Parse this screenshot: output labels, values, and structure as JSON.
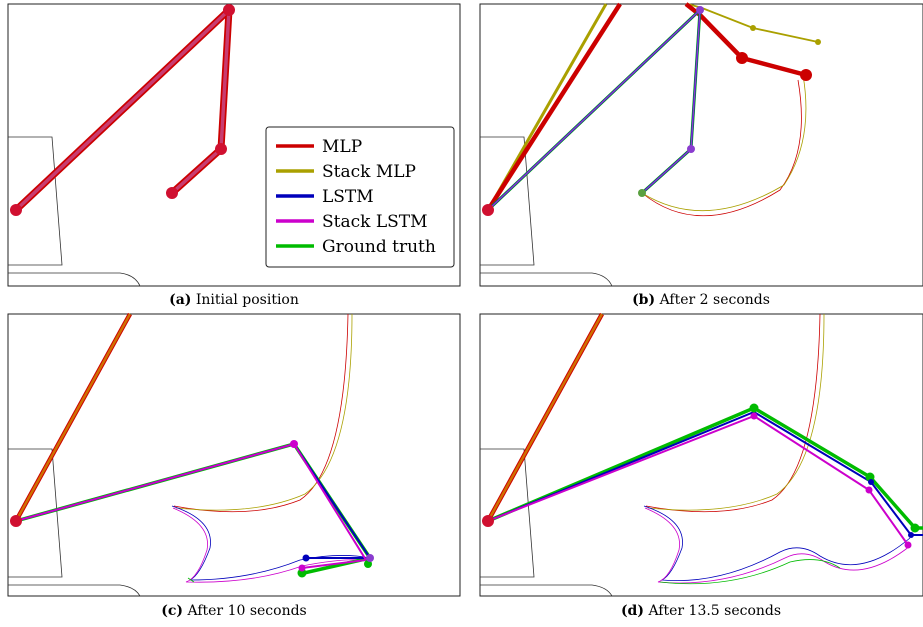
{
  "panels": [
    {
      "id": "a",
      "letter": "(a)",
      "caption": "Initial position"
    },
    {
      "id": "b",
      "letter": "(b)",
      "caption": "After 2 seconds"
    },
    {
      "id": "c",
      "letter": "(c)",
      "caption": "After 10 seconds"
    },
    {
      "id": "d",
      "letter": "(d)",
      "caption": "After 13.5 seconds"
    }
  ],
  "legend": {
    "items": [
      {
        "label": "MLP",
        "color": "#cc0000"
      },
      {
        "label": "Stack MLP",
        "color": "#aaa000"
      },
      {
        "label": "LSTM",
        "color": "#0000bb"
      },
      {
        "label": "Stack LSTM",
        "color": "#cc00cc"
      },
      {
        "label": "Ground truth",
        "color": "#00bb00"
      }
    ]
  },
  "colors": {
    "mlp": "#cc0000",
    "stack_mlp": "#aaa000",
    "lstm": "#0000bb",
    "stack_lstm": "#cc00cc",
    "ground_truth": "#00bb00",
    "arm_overlap": "#c83c70",
    "orange_overlap": "#d07000",
    "purple_overlap": "#8a3ccf"
  }
}
